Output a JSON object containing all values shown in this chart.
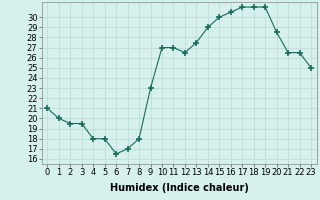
{
  "x": [
    0,
    1,
    2,
    3,
    4,
    5,
    6,
    7,
    8,
    9,
    10,
    11,
    12,
    13,
    14,
    15,
    16,
    17,
    18,
    19,
    20,
    21,
    22,
    23
  ],
  "y": [
    21,
    20,
    19.5,
    19.5,
    18,
    18,
    16.5,
    17,
    18,
    23,
    27,
    27,
    26.5,
    27.5,
    29,
    30,
    30.5,
    31,
    31,
    31,
    28.5,
    26.5,
    26.5,
    25
  ],
  "title": "",
  "xlabel": "Humidex (Indice chaleur)",
  "ylabel": "",
  "xlim": [
    -0.5,
    23.5
  ],
  "ylim": [
    15.5,
    31.5
  ],
  "yticks": [
    16,
    17,
    18,
    19,
    20,
    21,
    22,
    23,
    24,
    25,
    26,
    27,
    28,
    29,
    30
  ],
  "xticks": [
    0,
    1,
    2,
    3,
    4,
    5,
    6,
    7,
    8,
    9,
    10,
    11,
    12,
    13,
    14,
    15,
    16,
    17,
    18,
    19,
    20,
    21,
    22,
    23
  ],
  "line_color": "#1a6b5a",
  "marker": "+",
  "marker_size": 4,
  "bg_color": "#d6f0ee",
  "grid_color": "#b8d8d4",
  "xlabel_fontsize": 7,
  "tick_fontsize": 6
}
